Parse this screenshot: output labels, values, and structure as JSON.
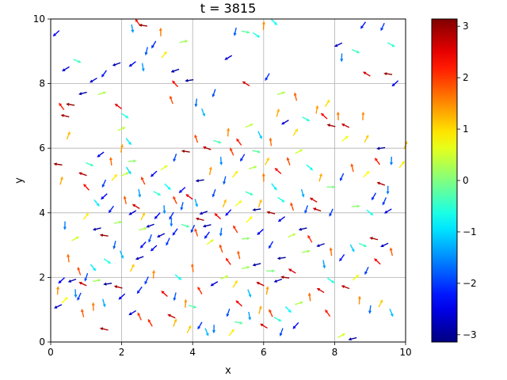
{
  "chart_data": {
    "type": "quiver",
    "title": "t = 3815",
    "xlabel": "x",
    "ylabel": "y",
    "xlim": [
      0,
      10
    ],
    "ylim": [
      0,
      10
    ],
    "xticks": [
      "0",
      "2",
      "4",
      "6",
      "8",
      "10"
    ],
    "yticks": [
      "0",
      "2",
      "4",
      "6",
      "8",
      "10"
    ],
    "grid": true,
    "colormap": "jet",
    "colorbar": {
      "range": [
        -3.14159,
        3.14159
      ],
      "ticks": [
        "3",
        "2",
        "1",
        "0",
        "−1",
        "−2",
        "−3"
      ],
      "tick_values": [
        3,
        2,
        1,
        0,
        -1,
        -2,
        -3
      ]
    },
    "arrows": [
      [
        0.15,
        9.55,
        -2.4
      ],
      [
        0.42,
        8.45,
        -2.6
      ],
      [
        0.75,
        8.7,
        -0.4
      ],
      [
        0.3,
        7.3,
        2.2
      ],
      [
        0.55,
        7.35,
        3.0
      ],
      [
        0.4,
        7.0,
        2.9
      ],
      [
        0.9,
        7.7,
        -2.9
      ],
      [
        1.2,
        8.1,
        -2.6
      ],
      [
        1.5,
        8.3,
        -2.2
      ],
      [
        1.45,
        7.7,
        0.3
      ],
      [
        1.85,
        8.6,
        -2.8
      ],
      [
        1.9,
        7.3,
        2.5
      ],
      [
        2.0,
        6.6,
        0.4
      ],
      [
        2.1,
        7.0,
        -0.6
      ],
      [
        2.3,
        9.7,
        -1.4
      ],
      [
        2.45,
        9.9,
        2.2
      ],
      [
        2.6,
        9.8,
        3.0
      ],
      [
        2.7,
        9.0,
        -1.8
      ],
      [
        2.9,
        9.2,
        -2.1
      ],
      [
        3.1,
        9.6,
        1.6
      ],
      [
        3.2,
        8.9,
        0.9
      ],
      [
        2.3,
        8.6,
        -2.5
      ],
      [
        2.6,
        8.5,
        -1.4
      ],
      [
        3.5,
        8.4,
        -2.8
      ],
      [
        3.75,
        9.3,
        0.2
      ],
      [
        3.9,
        8.1,
        -3.0
      ],
      [
        3.5,
        8.0,
        2.3
      ],
      [
        3.4,
        7.5,
        1.9
      ],
      [
        4.1,
        7.4,
        -1.7
      ],
      [
        4.3,
        7.1,
        -1.2
      ],
      [
        4.6,
        7.7,
        -1.9
      ],
      [
        5.0,
        8.8,
        -2.6
      ],
      [
        5.2,
        9.6,
        -1.8
      ],
      [
        5.5,
        9.6,
        -0.2
      ],
      [
        5.8,
        9.5,
        -0.6
      ],
      [
        6.0,
        9.8,
        1.5
      ],
      [
        6.3,
        9.9,
        -0.8
      ],
      [
        5.5,
        8.0,
        2.6
      ],
      [
        6.1,
        8.2,
        -2.1
      ],
      [
        6.4,
        7.1,
        1.3
      ],
      [
        6.5,
        7.7,
        0.3
      ],
      [
        6.9,
        7.6,
        1.8
      ],
      [
        7.2,
        6.9,
        -0.5
      ],
      [
        7.5,
        7.2,
        1.4
      ],
      [
        7.7,
        7.0,
        2.4
      ],
      [
        7.9,
        6.7,
        2.9
      ],
      [
        8.1,
        7.0,
        1.6
      ],
      [
        8.3,
        6.7,
        2.7
      ],
      [
        7.8,
        7.4,
        1.0
      ],
      [
        8.1,
        9.2,
        -2.7
      ],
      [
        8.6,
        9.0,
        -0.4
      ],
      [
        8.8,
        9.8,
        -2.2
      ],
      [
        9.35,
        9.75,
        -2.0
      ],
      [
        9.6,
        9.2,
        -0.5
      ],
      [
        9.5,
        8.3,
        3.0
      ],
      [
        8.9,
        8.3,
        2.6
      ],
      [
        9.7,
        8.0,
        -2.4
      ],
      [
        8.2,
        8.8,
        -1.6
      ],
      [
        8.8,
        7.0,
        1.5
      ],
      [
        8.9,
        6.3,
        1.1
      ],
      [
        8.3,
        6.3,
        0.7
      ],
      [
        9.3,
        6.0,
        -3.0
      ],
      [
        9.6,
        5.6,
        -1.6
      ],
      [
        9.9,
        5.5,
        0.9
      ],
      [
        10.0,
        6.1,
        1.2
      ],
      [
        9.2,
        5.6,
        2.2
      ],
      [
        8.9,
        5.2,
        0.8
      ],
      [
        9.3,
        4.9,
        2.8
      ],
      [
        9.5,
        4.7,
        -1.6
      ],
      [
        9.1,
        4.5,
        -2.1
      ],
      [
        9.4,
        4.35,
        -2.0
      ],
      [
        9.5,
        4.05,
        -2.6
      ],
      [
        9.0,
        4.0,
        -0.7
      ],
      [
        8.6,
        4.2,
        0.1
      ],
      [
        7.9,
        4.0,
        -2.0
      ],
      [
        7.5,
        4.1,
        2.8
      ],
      [
        7.2,
        4.1,
        -1.9
      ],
      [
        0.2,
        5.5,
        3.0
      ],
      [
        0.5,
        6.4,
        1.2
      ],
      [
        0.3,
        5.0,
        1.3
      ],
      [
        0.9,
        5.2,
        2.8
      ],
      [
        1.0,
        4.8,
        2.3
      ],
      [
        1.3,
        4.3,
        -0.9
      ],
      [
        1.1,
        5.5,
        -0.4
      ],
      [
        1.4,
        5.8,
        -2.5
      ],
      [
        1.5,
        4.9,
        -2.0
      ],
      [
        1.7,
        5.6,
        1.7
      ],
      [
        1.8,
        5.1,
        0.9
      ],
      [
        2.1,
        5.2,
        0.4
      ],
      [
        2.2,
        5.3,
        -1.0
      ],
      [
        1.5,
        4.5,
        -2.4
      ],
      [
        1.7,
        4.1,
        -2.2
      ],
      [
        1.9,
        3.7,
        0.2
      ],
      [
        2.1,
        4.4,
        1.8
      ],
      [
        2.3,
        4.0,
        -2.6
      ],
      [
        2.5,
        4.6,
        -1.4
      ],
      [
        2.6,
        3.9,
        1.1
      ],
      [
        2.8,
        3.6,
        -2.8
      ],
      [
        3.0,
        3.9,
        -2.3
      ],
      [
        3.2,
        4.1,
        -1.5
      ],
      [
        3.4,
        3.9,
        -2.1
      ],
      [
        3.5,
        4.4,
        2.0
      ],
      [
        3.7,
        4.2,
        -1.8
      ],
      [
        3.3,
        4.8,
        -0.8
      ],
      [
        3.7,
        4.7,
        -2.4
      ],
      [
        3.9,
        4.5,
        2.5
      ],
      [
        4.1,
        4.3,
        -1.3
      ],
      [
        4.3,
        4.0,
        -2.8
      ],
      [
        4.2,
        3.8,
        2.9
      ],
      [
        4.4,
        3.6,
        -2.9
      ],
      [
        4.0,
        3.5,
        -2.0
      ],
      [
        4.1,
        3.4,
        1.9
      ],
      [
        3.8,
        3.6,
        -0.3
      ],
      [
        3.5,
        3.4,
        -2.2
      ],
      [
        3.1,
        3.3,
        -2.7
      ],
      [
        2.8,
        3.2,
        -1.9
      ],
      [
        2.6,
        3.0,
        -2.3
      ],
      [
        2.5,
        2.6,
        -2.8
      ],
      [
        2.3,
        2.3,
        1.1
      ],
      [
        2.9,
        2.9,
        -2.4
      ],
      [
        3.3,
        3.1,
        -2.0
      ],
      [
        3.4,
        3.7,
        -1.6
      ],
      [
        1.3,
        3.5,
        -2.9
      ],
      [
        1.5,
        3.3,
        3.0
      ],
      [
        1.8,
        3.0,
        -1.8
      ],
      [
        2.0,
        2.7,
        -1.2
      ],
      [
        1.6,
        2.5,
        -0.6
      ],
      [
        1.2,
        2.3,
        -0.9
      ],
      [
        1.0,
        2.0,
        -1.9
      ],
      [
        0.8,
        2.2,
        1.9
      ],
      [
        0.5,
        2.6,
        1.7
      ],
      [
        0.3,
        1.9,
        -2.4
      ],
      [
        0.6,
        1.9,
        -2.8
      ],
      [
        0.9,
        1.8,
        2.7
      ],
      [
        1.3,
        1.9,
        0.2
      ],
      [
        1.6,
        1.8,
        -3.0
      ],
      [
        1.9,
        1.7,
        2.9
      ],
      [
        0.2,
        1.6,
        1.5
      ],
      [
        0.4,
        1.3,
        0.8
      ],
      [
        0.2,
        1.1,
        -2.7
      ],
      [
        0.7,
        1.5,
        -1.5
      ],
      [
        0.8,
        1.4,
        -2.0
      ],
      [
        1.2,
        1.1,
        1.6
      ],
      [
        1.5,
        1.2,
        -1.3
      ],
      [
        2.0,
        1.4,
        -2.4
      ],
      [
        2.5,
        1.6,
        -2.2
      ],
      [
        2.7,
        1.9,
        -2.0
      ],
      [
        2.9,
        2.1,
        1.5
      ],
      [
        3.2,
        1.5,
        2.4
      ],
      [
        3.5,
        1.4,
        -1.8
      ],
      [
        3.8,
        1.2,
        1.5
      ],
      [
        4.0,
        1.1,
        -0.3
      ],
      [
        2.5,
        0.8,
        2.0
      ],
      [
        2.3,
        0.9,
        -2.6
      ],
      [
        2.8,
        0.6,
        2.1
      ],
      [
        3.4,
        0.8,
        2.7
      ],
      [
        3.5,
        0.6,
        1.2
      ],
      [
        3.9,
        0.4,
        1.1
      ],
      [
        4.2,
        0.5,
        -2.1
      ],
      [
        4.4,
        0.3,
        -1.2
      ],
      [
        4.6,
        0.4,
        -1.6
      ],
      [
        1.5,
        0.4,
        2.9
      ],
      [
        5.0,
        0.9,
        -1.9
      ],
      [
        5.3,
        1.2,
        2.4
      ],
      [
        5.6,
        1.5,
        -1.2
      ],
      [
        5.9,
        1.8,
        2.7
      ],
      [
        6.1,
        1.6,
        1.4
      ],
      [
        6.4,
        1.9,
        -2.8
      ],
      [
        6.6,
        2.0,
        3.0
      ],
      [
        6.8,
        2.2,
        2.6
      ],
      [
        6.2,
        2.2,
        0.0
      ],
      [
        5.8,
        2.4,
        -2.9
      ],
      [
        5.5,
        2.3,
        0.2
      ],
      [
        5.3,
        2.7,
        1.8
      ],
      [
        5.0,
        2.5,
        2.2
      ],
      [
        4.8,
        2.9,
        1.9
      ],
      [
        4.5,
        3.1,
        0.6
      ],
      [
        4.8,
        3.4,
        -1.7
      ],
      [
        5.2,
        3.5,
        2.1
      ],
      [
        5.5,
        3.2,
        0.1
      ],
      [
        5.9,
        3.4,
        -2.4
      ],
      [
        6.2,
        3.0,
        -2.1
      ],
      [
        6.5,
        2.6,
        -3.0
      ],
      [
        6.8,
        3.3,
        0.4
      ],
      [
        7.1,
        3.5,
        -2.9
      ],
      [
        7.3,
        3.2,
        2.1
      ],
      [
        7.6,
        3.0,
        -2.8
      ],
      [
        7.9,
        2.8,
        1.7
      ],
      [
        8.2,
        2.6,
        -2.2
      ],
      [
        8.5,
        2.9,
        -1.1
      ],
      [
        8.8,
        3.0,
        -0.4
      ],
      [
        9.1,
        3.2,
        2.9
      ],
      [
        9.4,
        3.0,
        -2.7
      ],
      [
        9.6,
        2.8,
        1.8
      ],
      [
        9.2,
        2.5,
        2.4
      ],
      [
        8.9,
        2.2,
        -2.0
      ],
      [
        8.6,
        2.0,
        0.7
      ],
      [
        8.3,
        1.7,
        2.8
      ],
      [
        7.9,
        1.9,
        -0.6
      ],
      [
        7.6,
        1.6,
        2.6
      ],
      [
        7.3,
        1.4,
        1.7
      ],
      [
        7.0,
        1.2,
        0.3
      ],
      [
        6.7,
        1.0,
        -0.8
      ],
      [
        6.4,
        0.7,
        -0.5
      ],
      [
        6.2,
        0.9,
        2.0
      ],
      [
        5.9,
        1.0,
        1.3
      ],
      [
        5.6,
        0.8,
        -1.4
      ],
      [
        5.3,
        0.6,
        -0.2
      ],
      [
        5.1,
        0.3,
        0.9
      ],
      [
        6.5,
        0.3,
        -1.9
      ],
      [
        7.8,
        0.9,
        2.2
      ],
      [
        8.2,
        0.2,
        0.5
      ],
      [
        8.5,
        0.1,
        -2.9
      ],
      [
        9.0,
        1.0,
        -1.7
      ],
      [
        9.3,
        1.2,
        1.1
      ],
      [
        9.6,
        0.9,
        -1.2
      ],
      [
        8.7,
        1.3,
        1.5
      ],
      [
        5.0,
        4.0,
        -2.3
      ],
      [
        5.3,
        4.3,
        0.7
      ],
      [
        5.6,
        4.6,
        -0.4
      ],
      [
        5.9,
        4.3,
        1.2
      ],
      [
        6.2,
        4.0,
        2.9
      ],
      [
        6.5,
        3.8,
        -2.5
      ],
      [
        6.8,
        4.2,
        1.9
      ],
      [
        7.1,
        4.6,
        -1.3
      ],
      [
        7.4,
        4.4,
        2.6
      ],
      [
        6.3,
        4.8,
        -0.9
      ],
      [
        6.0,
        5.1,
        1.6
      ],
      [
        5.7,
        5.4,
        0.3
      ],
      [
        5.4,
        5.7,
        -2.1
      ],
      [
        5.1,
        5.9,
        2.0
      ],
      [
        4.8,
        5.6,
        -1.5
      ],
      [
        4.5,
        5.3,
        1.4
      ],
      [
        4.2,
        5.0,
        -3.0
      ],
      [
        4.9,
        5.0,
        -1.8
      ],
      [
        5.2,
        5.2,
        0.9
      ],
      [
        5.8,
        5.9,
        -0.2
      ],
      [
        6.1,
        5.6,
        1.1
      ],
      [
        6.4,
        5.3,
        2.4
      ],
      [
        6.7,
        5.6,
        1.9
      ],
      [
        7.0,
        5.9,
        0.5
      ],
      [
        7.3,
        5.4,
        -0.7
      ],
      [
        7.6,
        5.1,
        1.3
      ],
      [
        7.9,
        4.8,
        0.0
      ],
      [
        8.2,
        5.1,
        -2.0
      ],
      [
        8.5,
        5.4,
        1.8
      ],
      [
        6.9,
        6.5,
        1.0
      ],
      [
        6.6,
        6.8,
        -2.6
      ],
      [
        6.2,
        6.2,
        1.7
      ],
      [
        5.9,
        6.4,
        -1.1
      ],
      [
        5.6,
        6.7,
        0.4
      ],
      [
        5.3,
        6.2,
        2.2
      ],
      [
        5.0,
        6.5,
        1.5
      ],
      [
        4.7,
        6.2,
        -0.3
      ],
      [
        4.4,
        6.0,
        2.8
      ],
      [
        4.1,
        6.3,
        1.9
      ],
      [
        3.8,
        5.9,
        3.0
      ],
      [
        3.5,
        5.7,
        -1.9
      ],
      [
        3.2,
        5.4,
        0.6
      ],
      [
        2.9,
        5.2,
        -2.4
      ],
      [
        2.6,
        5.0,
        2.0
      ],
      [
        2.3,
        5.6,
        0.1
      ],
      [
        2.0,
        6.0,
        1.4
      ],
      [
        2.2,
        6.2,
        -0.9
      ],
      [
        0.7,
        3.2,
        0.5
      ],
      [
        0.4,
        3.6,
        -1.6
      ],
      [
        1.0,
        3.9,
        0.9
      ],
      [
        2.4,
        4.2,
        2.6
      ],
      [
        2.6,
        3.5,
        0.3
      ],
      [
        3.0,
        4.6,
        -0.5
      ],
      [
        4.6,
        4.6,
        -1.9
      ],
      [
        4.9,
        4.3,
        1.2
      ],
      [
        4.7,
        3.9,
        2.4
      ],
      [
        4.4,
        3.3,
        -2.2
      ],
      [
        5.6,
        3.8,
        0.8
      ],
      [
        5.8,
        4.1,
        -3.0
      ],
      [
        6.5,
        4.4,
        -0.6
      ],
      [
        7.2,
        2.8,
        0.2
      ],
      [
        7.7,
        2.4,
        -1.4
      ],
      [
        4.0,
        2.3,
        1.7
      ],
      [
        3.6,
        2.0,
        -0.7
      ],
      [
        4.2,
        1.6,
        2.1
      ],
      [
        4.6,
        1.8,
        -2.6
      ],
      [
        4.9,
        2.0,
        0.4
      ],
      [
        5.2,
        1.8,
        1.0
      ],
      [
        6.0,
        0.5,
        2.6
      ],
      [
        6.9,
        0.5,
        -2.3
      ],
      [
        0.9,
        0.9,
        1.8
      ]
    ]
  }
}
